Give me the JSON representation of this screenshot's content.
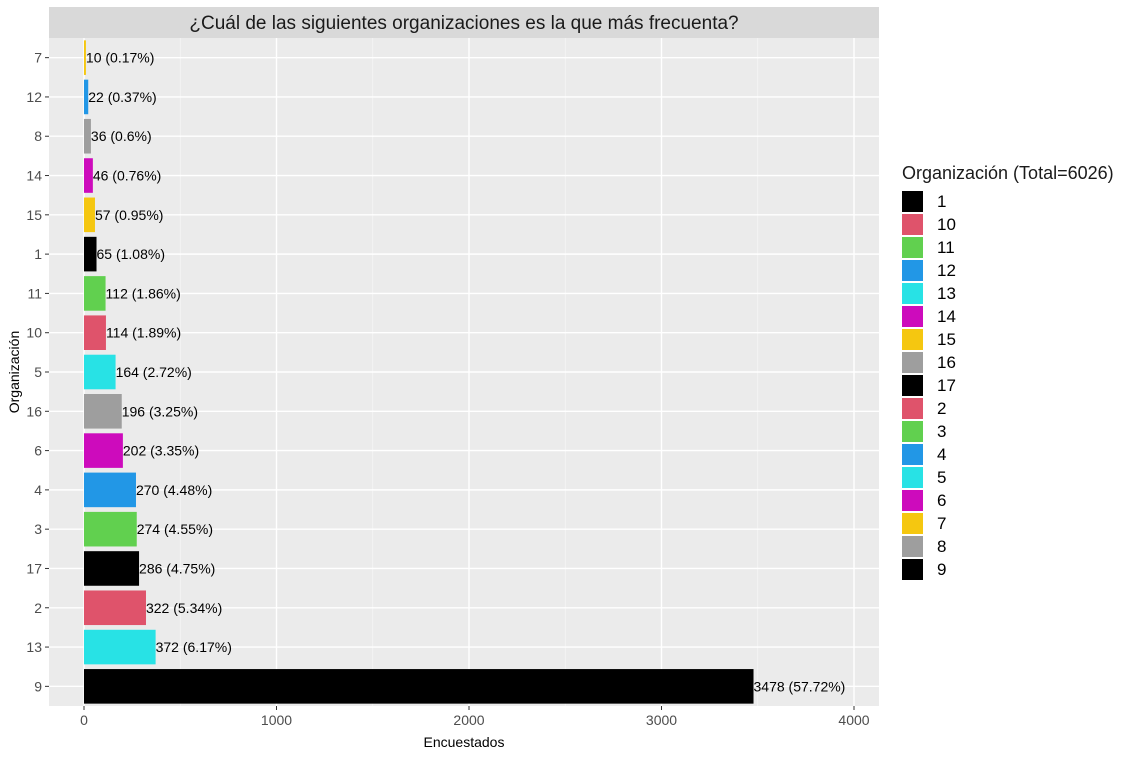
{
  "chart_data": {
    "type": "bar",
    "orientation": "horizontal",
    "title": "¿Cuál de las siguientes organizaciones es la que más frecuenta?",
    "xlabel": "Encuestados",
    "ylabel": "Organización",
    "xlim": [
      0,
      4000
    ],
    "x_ticks": [
      0,
      1000,
      2000,
      3000,
      4000
    ],
    "grid": true,
    "legend_placement": "right",
    "legend_title": "Organización (Total=6026)",
    "categories": [
      "7",
      "12",
      "8",
      "14",
      "15",
      "1",
      "11",
      "10",
      "5",
      "16",
      "6",
      "4",
      "3",
      "17",
      "2",
      "13",
      "9"
    ],
    "values": [
      10,
      22,
      36,
      46,
      57,
      65,
      112,
      114,
      164,
      196,
      202,
      270,
      274,
      286,
      322,
      372,
      3478
    ],
    "data_labels": [
      "10 (0.17%)",
      "22 (0.37%)",
      "36 (0.6%)",
      "46 (0.76%)",
      "57 (0.95%)",
      "65 (1.08%)",
      "112 (1.86%)",
      "114 (1.89%)",
      "164 (2.72%)",
      "196 (3.25%)",
      "202 (3.35%)",
      "270 (4.48%)",
      "274 (4.55%)",
      "286 (4.75%)",
      "322 (5.34%)",
      "372 (6.17%)",
      "3478 (57.72%)"
    ],
    "colors": [
      "#F5C710",
      "#2297E6",
      "#9E9E9E",
      "#CD0BBC",
      "#F5C710",
      "#000000",
      "#61D04F",
      "#DF536B",
      "#28E2E5",
      "#9E9E9E",
      "#CD0BBC",
      "#2297E6",
      "#61D04F",
      "#000000",
      "#DF536B",
      "#28E2E5",
      "#000000"
    ],
    "legend": [
      {
        "label": "1",
        "color": "#000000"
      },
      {
        "label": "10",
        "color": "#DF536B"
      },
      {
        "label": "11",
        "color": "#61D04F"
      },
      {
        "label": "12",
        "color": "#2297E6"
      },
      {
        "label": "13",
        "color": "#28E2E5"
      },
      {
        "label": "14",
        "color": "#CD0BBC"
      },
      {
        "label": "15",
        "color": "#F5C710"
      },
      {
        "label": "16",
        "color": "#9E9E9E"
      },
      {
        "label": "17",
        "color": "#000000"
      },
      {
        "label": "2",
        "color": "#DF536B"
      },
      {
        "label": "3",
        "color": "#61D04F"
      },
      {
        "label": "4",
        "color": "#2297E6"
      },
      {
        "label": "5",
        "color": "#28E2E5"
      },
      {
        "label": "6",
        "color": "#CD0BBC"
      },
      {
        "label": "7",
        "color": "#F5C710"
      },
      {
        "label": "8",
        "color": "#9E9E9E"
      },
      {
        "label": "9",
        "color": "#000000"
      }
    ]
  }
}
